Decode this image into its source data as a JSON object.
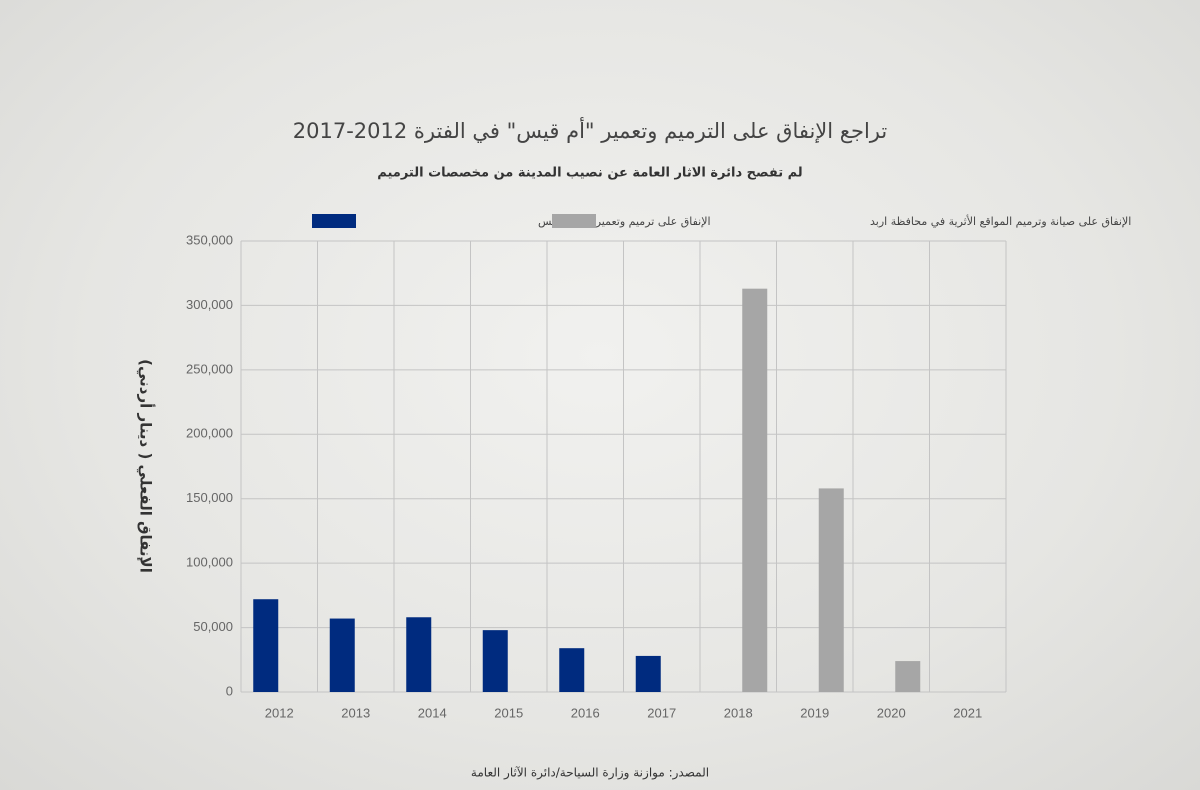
{
  "chart_data": {
    "type": "bar",
    "title": "تراجع الإنفاق على الترميم وتعمير \"أم قيس\" في الفترة 2012-2017",
    "subtitle": "لم تفصح دائرة الاثار العامة عن نصيب المدينة من مخصصات الترميم",
    "y_label": "الإنفاق الفعلي ( دينار أردني)",
    "source": "المصدر: موازنة وزارة السياحة/دائرة الآثار العامة",
    "categories": [
      "2012",
      "2013",
      "2014",
      "2015",
      "2016",
      "2017",
      "2018",
      "2019",
      "2020",
      "2021"
    ],
    "series": [
      {
        "name": "الإنفاق على ترميم وتعمير آثار أم قيس",
        "color": "#002b7f",
        "values": [
          72000,
          57000,
          58000,
          48000,
          34000,
          28000,
          null,
          null,
          null,
          null
        ]
      },
      {
        "name": "الإنفاق على صيانة وترميم المواقع الأثرية  في محافظة اربد",
        "color": "#a6a6a6",
        "values": [
          null,
          null,
          null,
          null,
          null,
          null,
          313000,
          158000,
          24000,
          null
        ]
      }
    ],
    "ylim": [
      0,
      350000
    ],
    "yticks": [
      0,
      {
        "value": 50000,
        "label": "50,000"
      },
      {
        "value": 100000,
        "label": "100,000"
      },
      {
        "value": 150000,
        "label": "150,000"
      },
      {
        "value": 200000,
        "label": "200,000"
      },
      {
        "value": 250000,
        "label": "250,000"
      },
      {
        "value": 300000,
        "label": "300,000"
      },
      {
        "value": 350000,
        "label": "350,000"
      }
    ],
    "grid": true
  }
}
